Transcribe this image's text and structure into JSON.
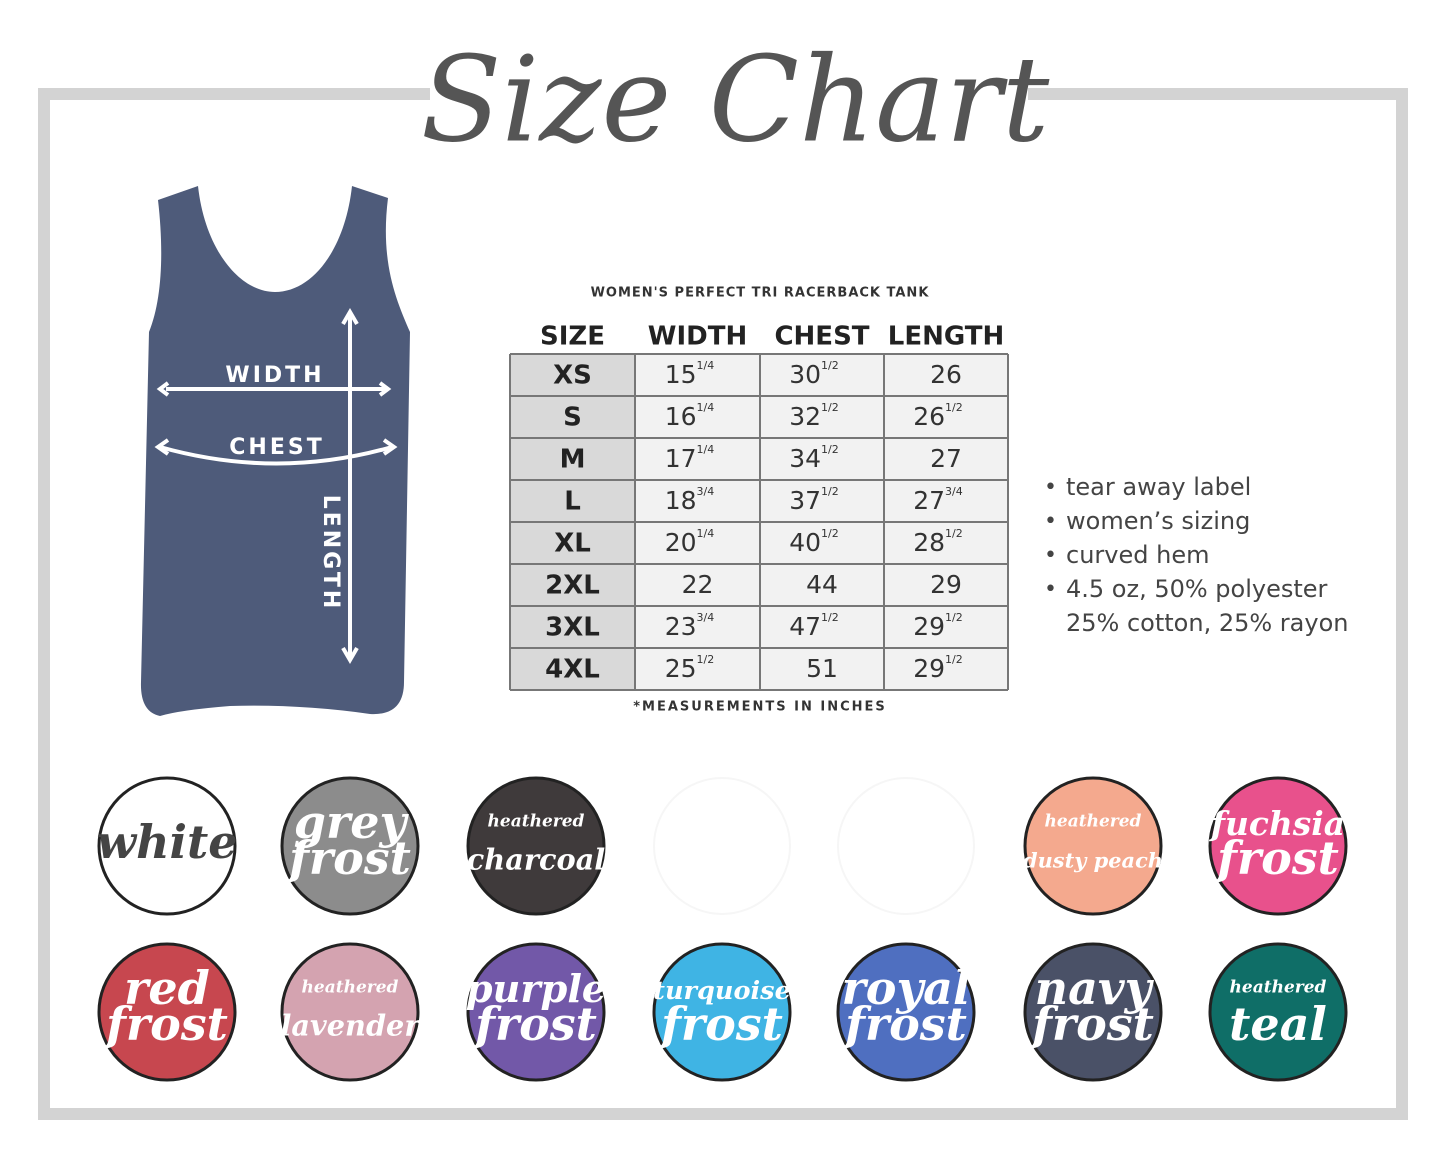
{
  "header": {
    "title": "Size Chart"
  },
  "tank": {
    "labels": [
      "WIDTH",
      "CHEST",
      "LENGTH"
    ]
  },
  "table": {
    "subtitle": "WOMEN'S PERFECT TRI RACERBACK TANK",
    "columns": [
      "SIZE",
      "WIDTH",
      "CHEST",
      "LENGTH"
    ],
    "rows": [
      [
        "XS",
        {
          "n": "15",
          "sup": "1/4"
        },
        {
          "n": "30",
          "sup": "1/2"
        },
        {
          "n": "26"
        }
      ],
      [
        "S",
        {
          "n": "16",
          "sup": "1/4"
        },
        {
          "n": "32",
          "sup": "1/2"
        },
        {
          "n": "26",
          "sup": "1/2"
        }
      ],
      [
        "M",
        {
          "n": "17",
          "sup": "1/4"
        },
        {
          "n": "34",
          "sup": "1/2"
        },
        {
          "n": "27"
        }
      ],
      [
        "L",
        {
          "n": "18",
          "sup": "3/4"
        },
        {
          "n": "37",
          "sup": "1/2"
        },
        {
          "n": "27",
          "sup": "3/4"
        }
      ],
      [
        "XL",
        {
          "n": "20",
          "sup": "1/4"
        },
        {
          "n": "40",
          "sup": "1/2"
        },
        {
          "n": "28",
          "sup": "1/2"
        }
      ],
      [
        "2XL",
        {
          "n": "22"
        },
        {
          "n": "44"
        },
        {
          "n": "29"
        }
      ],
      [
        "3XL",
        {
          "n": "23",
          "sup": "3/4"
        },
        {
          "n": "47",
          "sup": "1/2"
        },
        {
          "n": "29",
          "sup": "1/2"
        }
      ],
      [
        "4XL",
        {
          "n": "25",
          "sup": "1/2"
        },
        {
          "n": "51"
        },
        {
          "n": "29",
          "sup": "1/2"
        }
      ]
    ],
    "footnote": "*MEASUREMENTS IN INCHES"
  },
  "features": [
    [
      "tear away label"
    ],
    [
      "women’s sizing"
    ],
    [
      "curved hem"
    ],
    [
      "4.5 oz, 50% polyester",
      "25% cotton, 25% rayon"
    ]
  ],
  "swatches": [
    {
      "lines": [
        "white"
      ],
      "color": "#ffffff"
    },
    {
      "lines": [
        "grey",
        "frost"
      ],
      "color": "#8c8c8c"
    },
    {
      "lines": [
        "heathered",
        "charcoal"
      ],
      "color": "#3f3a3b"
    },
    {
      "lines": [
        "heathered",
        "dusty peach"
      ],
      "color": "#f4a98e"
    },
    {
      "lines": [
        "fuchsia",
        "frost"
      ],
      "color": "#e8518c"
    },
    {
      "lines": [
        "red",
        "frost"
      ],
      "color": "#c7474f"
    },
    {
      "lines": [
        "heathered",
        "lavender"
      ],
      "color": "#d4a3b0"
    },
    {
      "lines": [
        "purple",
        "frost"
      ],
      "color": "#7258a8"
    },
    {
      "lines": [
        "turquoise",
        "frost"
      ],
      "color": "#3fb4e4"
    },
    {
      "lines": [
        "royal",
        "frost"
      ],
      "color": "#4f6fc0"
    },
    {
      "lines": [
        "navy",
        "frost"
      ],
      "color": "#4a5167"
    },
    {
      "lines": [
        "heathered",
        "teal"
      ],
      "color": "#0f6e67"
    }
  ]
}
